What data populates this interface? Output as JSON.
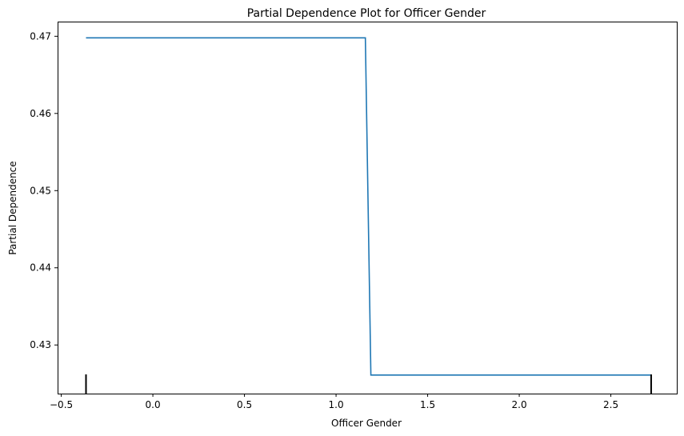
{
  "chart_data": {
    "type": "line",
    "title": "Partial Dependence Plot for Officer Gender",
    "xlabel": "Officer Gender",
    "ylabel": "Partial Dependence",
    "xlim": [
      -0.52,
      2.86
    ],
    "ylim": [
      0.4237,
      0.4719
    ],
    "x_ticks": [
      -0.5,
      0.0,
      0.5,
      1.0,
      1.5,
      2.0,
      2.5
    ],
    "x_tick_labels": [
      "−0.5",
      "0.0",
      "0.5",
      "1.0",
      "1.5",
      "2.0",
      "2.5"
    ],
    "y_ticks": [
      0.43,
      0.44,
      0.45,
      0.46,
      0.47
    ],
    "y_tick_labels": [
      "0.43",
      "0.44",
      "0.45",
      "0.46",
      "0.47"
    ],
    "grid": false,
    "series": [
      {
        "color": "#1f77b4",
        "x": [
          -0.365,
          1.16,
          1.19,
          2.72
        ],
        "y": [
          0.4698,
          0.4698,
          0.4261,
          0.4261
        ]
      }
    ],
    "rug": {
      "color": "#000000",
      "x": [
        -0.365,
        2.72
      ]
    }
  }
}
